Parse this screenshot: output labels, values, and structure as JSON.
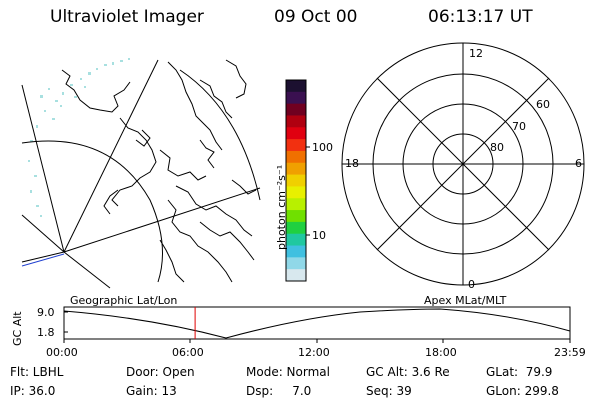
{
  "header": {
    "instrument": "Ultraviolet Imager",
    "date": "09 Oct 00",
    "time": "06:13:17 UT"
  },
  "colorbar": {
    "unit_label": "photon cm⁻²s⁻¹",
    "tick_100": "100",
    "tick_10": "10",
    "colors_top_to_bottom": [
      "#1c1030",
      "#3a1050",
      "#700020",
      "#b00010",
      "#e00010",
      "#f23010",
      "#f07000",
      "#f0a000",
      "#f0d000",
      "#e8f000",
      "#b8f000",
      "#70e000",
      "#20d040",
      "#20c8a0",
      "#40c0e0",
      "#90d8e8",
      "#d8e8ee"
    ]
  },
  "left_map": {
    "projection_label": "Geographic Lat/Lon"
  },
  "polar_plot": {
    "label": "Apex MLat/MLT",
    "mlt_top": "12",
    "mlt_left": "18",
    "mlt_right": "6",
    "mlt_bottom": "0",
    "lat_60": "60",
    "lat_70": "70",
    "lat_80": "80"
  },
  "altitude_plot": {
    "ylabel": "GC Alt",
    "ytick_top": "9.0",
    "ytick_bottom": "1.8",
    "x_ticks": [
      "00:00",
      "06:00",
      "12:00",
      "18:00",
      "23:59"
    ],
    "current_time_hours": 6.22
  },
  "info": {
    "flt": "Flt: LBHL",
    "ip": "IP: 36.0",
    "door": "Door: Open",
    "gain": "Gain: 13",
    "mode": "Mode: Normal",
    "dsp": "Dsp:     7.0",
    "gcalt": "GC Alt: 3.6 Re",
    "seq": "Seq: 39",
    "glat": "GLat:  79.9",
    "glon": "GLon: 299.8"
  }
}
